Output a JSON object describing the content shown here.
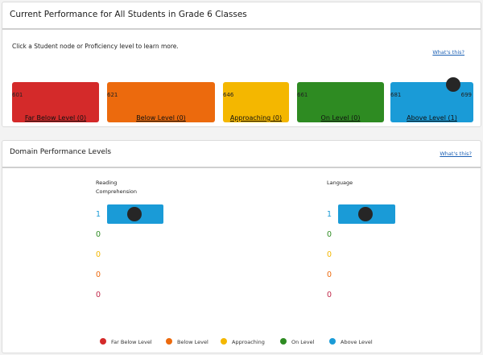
{
  "performance": {
    "title": "Current Performance for All Students in Grade 6 Classes",
    "instruction": "Click a Student node or Proficiency level to learn more.",
    "whats_this": "What's this?",
    "levels": [
      {
        "label": "Far Below Level (0)",
        "min": "601",
        "color": "#d42a2a"
      },
      {
        "label": "Below Level (0)",
        "min": "621",
        "color": "#ec6a0d"
      },
      {
        "label": "Approaching (0)",
        "min": "646",
        "color": "#f4b700"
      },
      {
        "label": "On Level (0)",
        "min": "661",
        "color": "#2e8b22"
      },
      {
        "label": "Above Level (1)",
        "min": "681",
        "max": "699",
        "color": "#1a9bd7"
      }
    ]
  },
  "domains": {
    "title": "Domain Performance Levels",
    "whats_this": "What's this?",
    "columns": [
      {
        "title": "Reading Comprehension",
        "counts": [
          "1",
          "0",
          "0",
          "0",
          "0"
        ]
      },
      {
        "title": "Language",
        "counts": [
          "1",
          "0",
          "0",
          "0",
          "0"
        ]
      }
    ],
    "count_colors": [
      "#1a9bd7",
      "#2e8b22",
      "#f4b700",
      "#ec6a0d",
      "#c0284a"
    ]
  },
  "legend": [
    {
      "label": "Far Below Level",
      "color": "#d42a2a"
    },
    {
      "label": "Below Level",
      "color": "#ec6a0d"
    },
    {
      "label": "Approaching",
      "color": "#f4b700"
    },
    {
      "label": "On Level",
      "color": "#2e8b22"
    },
    {
      "label": "Above Level",
      "color": "#1a9bd7"
    }
  ]
}
